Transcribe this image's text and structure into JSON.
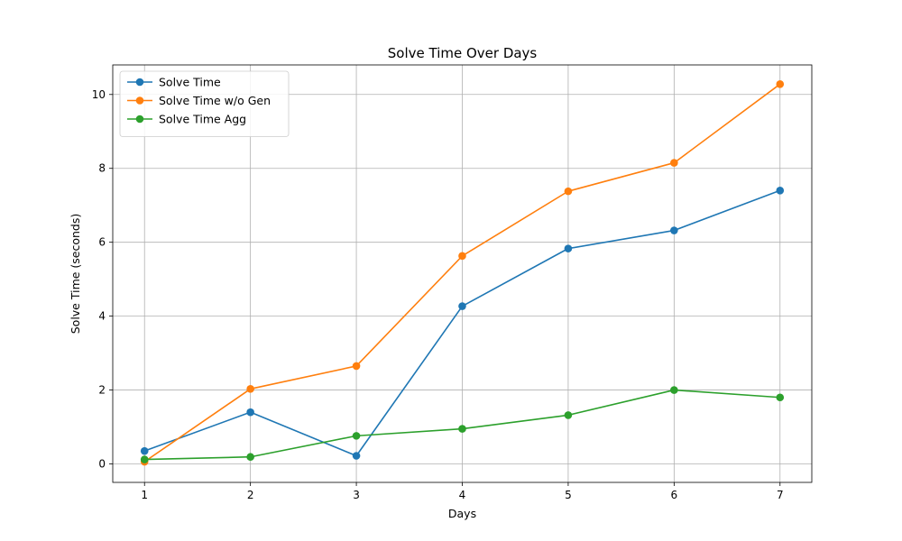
{
  "chart_data": {
    "type": "line",
    "title": "Solve Time Over Days",
    "xlabel": "Days",
    "ylabel": "Solve Time (seconds)",
    "x": [
      1,
      2,
      3,
      4,
      5,
      6,
      7
    ],
    "xlim": [
      0.7,
      7.3
    ],
    "ylim": [
      -0.5,
      10.8
    ],
    "xticks": [
      1,
      2,
      3,
      4,
      5,
      6,
      7
    ],
    "yticks": [
      0,
      2,
      4,
      6,
      8,
      10
    ],
    "grid": true,
    "legend_position": "top-left",
    "series": [
      {
        "name": "Solve Time",
        "color": "#1f77b4",
        "values": [
          0.35,
          1.4,
          0.22,
          4.27,
          5.83,
          6.32,
          7.4
        ]
      },
      {
        "name": "Solve Time w/o Gen",
        "color": "#ff7f0e",
        "values": [
          0.06,
          2.03,
          2.65,
          5.63,
          7.38,
          8.15,
          10.28
        ]
      },
      {
        "name": "Solve Time Agg",
        "color": "#2ca02c",
        "values": [
          0.12,
          0.19,
          0.76,
          0.95,
          1.32,
          2.0,
          1.8
        ]
      }
    ]
  }
}
